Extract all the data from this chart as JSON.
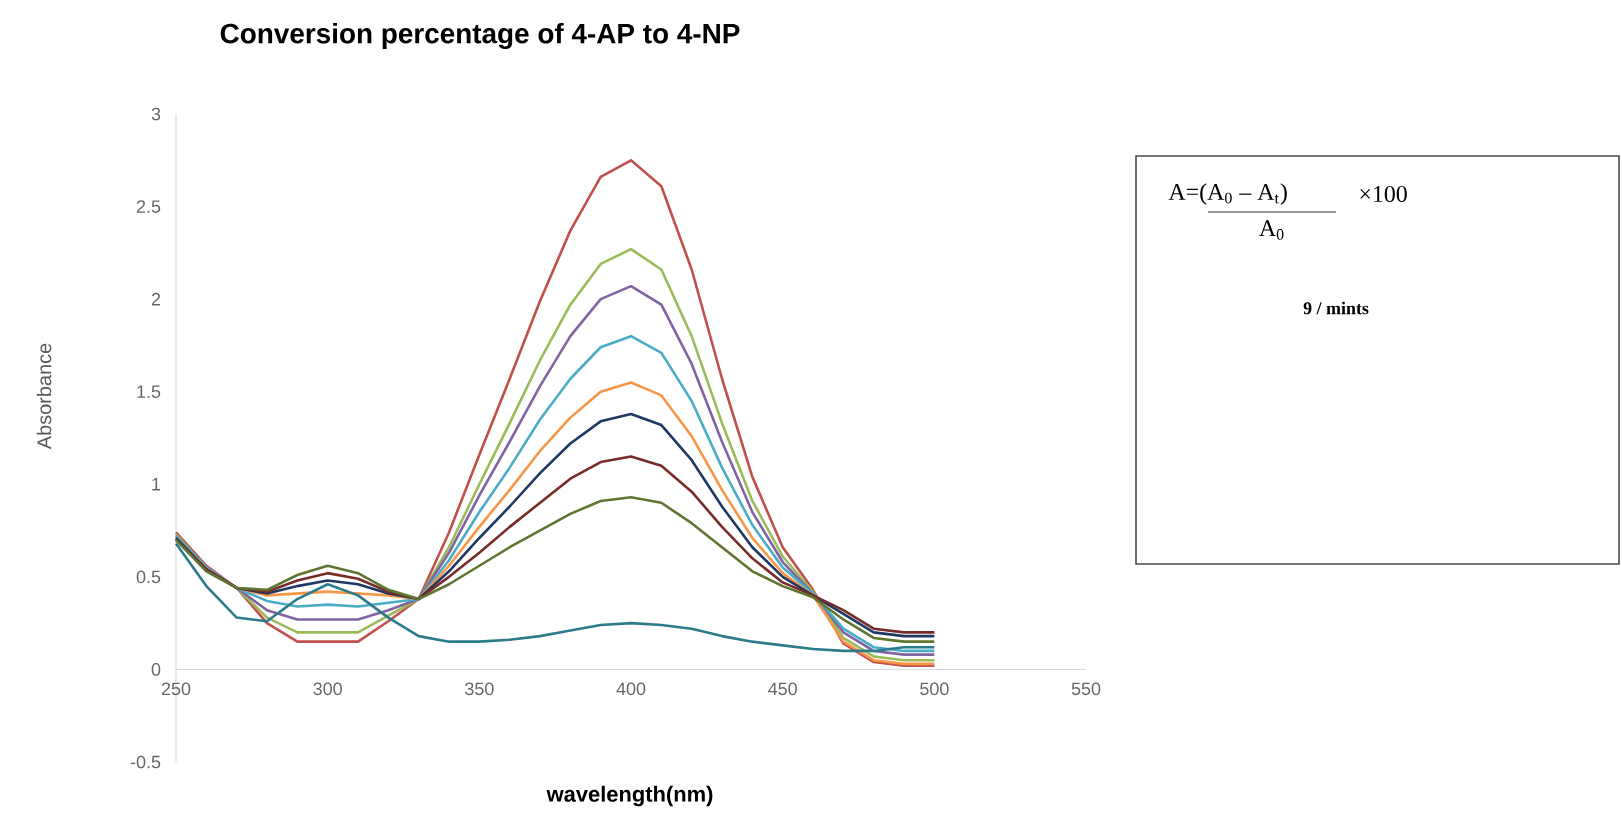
{
  "chart_data": {
    "type": "line",
    "title": "Conversion percentage of 4-AP to 4-NP",
    "xlabel": "wavelength(nm)",
    "ylabel": "Absorbance",
    "x": [
      250,
      260,
      270,
      280,
      290,
      300,
      310,
      320,
      330,
      340,
      350,
      360,
      370,
      380,
      390,
      400,
      410,
      420,
      430,
      440,
      450,
      460,
      470,
      480,
      490,
      500
    ],
    "xlim": [
      250,
      550
    ],
    "xticks": [
      250,
      300,
      350,
      400,
      450,
      500,
      550
    ],
    "ylim": [
      -0.5,
      3
    ],
    "yticks": [
      -0.5,
      0,
      0.5,
      1,
      1.5,
      2,
      2.5,
      3
    ],
    "grid": false,
    "marker": "none",
    "line_style": "solid",
    "series": [
      {
        "color": "#c0504d",
        "values": [
          0.74,
          0.56,
          0.44,
          0.25,
          0.15,
          0.15,
          0.15,
          0.26,
          0.38,
          0.74,
          1.16,
          1.57,
          1.99,
          2.37,
          2.66,
          2.75,
          2.61,
          2.16,
          1.57,
          1.04,
          0.66,
          0.43,
          0.14,
          0.04,
          0.02,
          0.02
        ]
      },
      {
        "color": "#9bbb59",
        "values": [
          0.73,
          0.55,
          0.44,
          0.28,
          0.2,
          0.2,
          0.2,
          0.29,
          0.38,
          0.66,
          1.0,
          1.33,
          1.67,
          1.97,
          2.19,
          2.27,
          2.16,
          1.8,
          1.33,
          0.91,
          0.61,
          0.42,
          0.17,
          0.07,
          0.05,
          0.05
        ]
      },
      {
        "color": "#8064a2",
        "values": [
          0.72,
          0.55,
          0.44,
          0.32,
          0.27,
          0.27,
          0.27,
          0.32,
          0.38,
          0.63,
          0.94,
          1.23,
          1.53,
          1.8,
          2.0,
          2.07,
          1.97,
          1.65,
          1.23,
          0.85,
          0.58,
          0.41,
          0.2,
          0.1,
          0.08,
          0.08
        ]
      },
      {
        "color": "#4bacc6",
        "values": [
          0.72,
          0.55,
          0.44,
          0.37,
          0.34,
          0.35,
          0.34,
          0.36,
          0.38,
          0.59,
          0.85,
          1.09,
          1.35,
          1.57,
          1.74,
          1.8,
          1.71,
          1.45,
          1.09,
          0.78,
          0.55,
          0.41,
          0.22,
          0.12,
          0.1,
          0.1
        ]
      },
      {
        "color": "#f79646",
        "values": [
          0.71,
          0.54,
          0.44,
          0.4,
          0.41,
          0.42,
          0.41,
          0.4,
          0.38,
          0.56,
          0.77,
          0.97,
          1.18,
          1.36,
          1.5,
          1.55,
          1.48,
          1.26,
          0.97,
          0.71,
          0.52,
          0.4,
          0.15,
          0.05,
          0.03,
          0.03
        ]
      },
      {
        "color": "#1f3864",
        "values": [
          0.71,
          0.54,
          0.44,
          0.41,
          0.45,
          0.48,
          0.46,
          0.41,
          0.38,
          0.53,
          0.71,
          0.88,
          1.06,
          1.22,
          1.34,
          1.38,
          1.32,
          1.13,
          0.88,
          0.66,
          0.5,
          0.4,
          0.3,
          0.2,
          0.18,
          0.18
        ]
      },
      {
        "color": "#772c2a",
        "values": [
          0.7,
          0.54,
          0.44,
          0.42,
          0.48,
          0.52,
          0.49,
          0.42,
          0.38,
          0.5,
          0.63,
          0.77,
          0.9,
          1.03,
          1.12,
          1.15,
          1.1,
          0.96,
          0.77,
          0.6,
          0.47,
          0.4,
          0.32,
          0.22,
          0.2,
          0.2
        ]
      },
      {
        "color": "#5f7530",
        "values": [
          0.7,
          0.53,
          0.44,
          0.43,
          0.51,
          0.56,
          0.52,
          0.43,
          0.38,
          0.46,
          0.56,
          0.66,
          0.75,
          0.84,
          0.91,
          0.93,
          0.9,
          0.79,
          0.66,
          0.53,
          0.45,
          0.39,
          0.27,
          0.17,
          0.15,
          0.15
        ]
      },
      {
        "color": "#2c7b8c",
        "values": [
          0.68,
          0.45,
          0.28,
          0.26,
          0.38,
          0.46,
          0.4,
          0.28,
          0.18,
          0.15,
          0.15,
          0.16,
          0.18,
          0.21,
          0.24,
          0.25,
          0.24,
          0.22,
          0.18,
          0.15,
          0.13,
          0.11,
          0.1,
          0.1,
          0.12,
          0.12
        ]
      }
    ],
    "annotations": [
      "A=(A$_{0}$ – A$_{t}$)",
      "×100",
      "A$_{0}$",
      "9 / mints"
    ]
  }
}
